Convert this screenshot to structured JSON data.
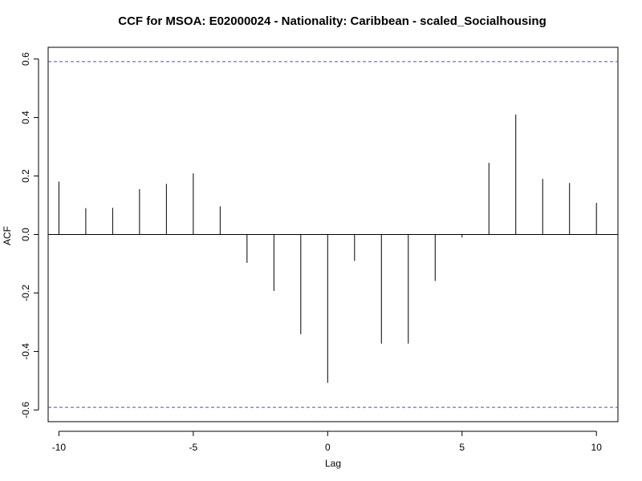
{
  "chart_data": {
    "type": "bar",
    "title": "CCF for MSOA: E02000024 - Nationality: Caribbean - scaled_Socialhousing",
    "xlabel": "Lag",
    "ylabel": "ACF",
    "x": [
      -10,
      -9,
      -8,
      -7,
      -6,
      -5,
      -4,
      -3,
      -2,
      -1,
      0,
      1,
      2,
      3,
      4,
      5,
      6,
      7,
      8,
      9,
      10
    ],
    "values": [
      0.181,
      0.09,
      0.091,
      0.155,
      0.173,
      0.209,
      0.096,
      -0.097,
      -0.193,
      -0.341,
      -0.507,
      -0.09,
      -0.373,
      -0.373,
      -0.159,
      -0.01,
      0.245,
      0.41,
      0.19,
      0.176,
      0.108
    ],
    "xlim": [
      -10.4,
      10.8
    ],
    "ylim": [
      -0.64,
      0.64
    ],
    "xticks": [
      -10,
      -5,
      0,
      5,
      10
    ],
    "xtick_labels": [
      "-10",
      "-5",
      "0",
      "5",
      "10"
    ],
    "yticks": [
      -0.6,
      -0.4,
      -0.2,
      0.0,
      0.2,
      0.4,
      0.6
    ],
    "ytick_labels": [
      "-0.6",
      "-0.4",
      "-0.2",
      "0.0",
      "0.2",
      "0.4",
      "0.6"
    ],
    "confidence_bound": 0.591,
    "confidence_color": "#4b4bd8",
    "zero_line": true,
    "grid": false,
    "bar_color": "#000000"
  }
}
